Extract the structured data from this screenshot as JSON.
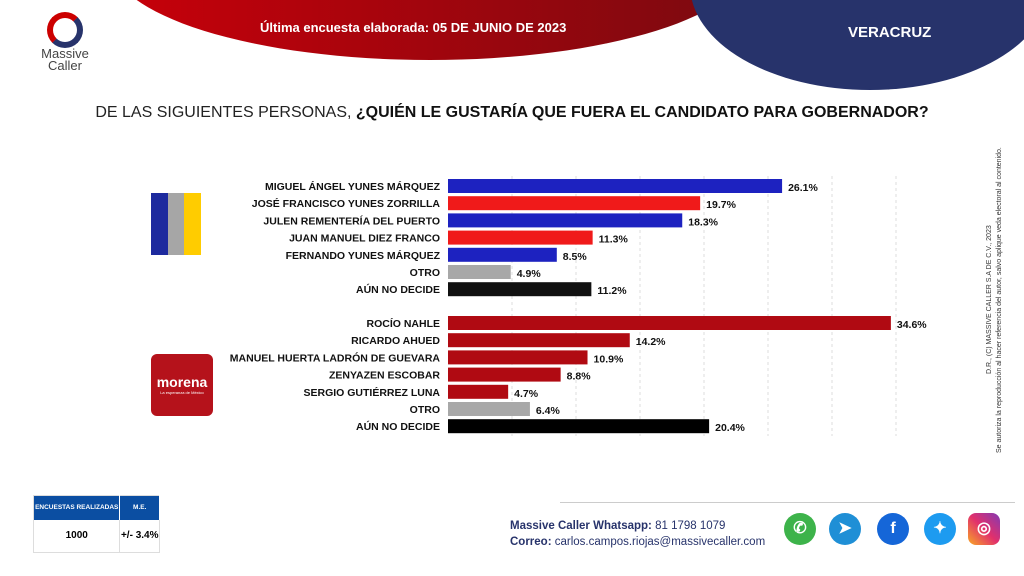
{
  "header": {
    "survey_date": "Última encuesta elaborada: 05 DE JUNIO DE 2023",
    "state": "VERACRUZ",
    "logo_text": [
      "Massive",
      "Caller"
    ]
  },
  "question": {
    "prefix": "DE LAS SIGUIENTES PERSONAS, ",
    "bold": "¿QUIÉN LE GUSTARÍA QUE FUERA EL CANDIDATO PARA GOBERNADOR?"
  },
  "chart_data": [
    {
      "type": "bar",
      "orientation": "horizontal",
      "group": "PAN-PRI-PRD",
      "grid": true,
      "categories": [
        "MIGUEL ÁNGEL YUNES MÁRQUEZ",
        "JOSÉ FRANCISCO YUNES ZORRILLA",
        "JULEN REMENTERÍA DEL PUERTO",
        "JUAN MANUEL DIEZ FRANCO",
        "FERNANDO YUNES MÁRQUEZ",
        "OTRO",
        "AÚN NO DECIDE"
      ],
      "values": [
        26.1,
        19.7,
        18.3,
        11.3,
        8.5,
        4.9,
        11.2
      ],
      "labels": [
        "26.1%",
        "19.7%",
        "18.3%",
        "11.3%",
        "8.5%",
        "4.9%",
        "11.2%"
      ],
      "colors": [
        "#1d22c0",
        "#f01a1a",
        "#1d22c0",
        "#f01a1a",
        "#1d22c0",
        "#a8a8a8",
        "#111111"
      ]
    },
    {
      "type": "bar",
      "orientation": "horizontal",
      "group": "morena",
      "grid": true,
      "categories": [
        "ROCÍO NAHLE",
        "RICARDO AHUED",
        "MANUEL HUERTA LADRÓN DE GUEVARA",
        "ZENYAZEN ESCOBAR",
        "SERGIO GUTIÉRREZ LUNA",
        "OTRO",
        "AÚN NO DECIDE"
      ],
      "values": [
        34.6,
        14.2,
        10.9,
        8.8,
        4.7,
        6.4,
        20.4
      ],
      "labels": [
        "34.6%",
        "14.2%",
        "10.9%",
        "8.8%",
        "4.7%",
        "6.4%",
        "20.4%"
      ],
      "colors": [
        "#b00a12",
        "#b00a12",
        "#b00a12",
        "#b00a12",
        "#b00a12",
        "#a8a8a8",
        "#000000"
      ]
    }
  ],
  "logos": {
    "pan_pri_prd_colors": [
      "#1d2a9e",
      "#a6a6a6",
      "#ffcc00"
    ],
    "morena_text": "morena",
    "morena_sub": "La esperanza de México"
  },
  "copyright": [
    "D.R., (C) MASSIVE CALLER S.A DE C.V., 2023",
    "Se autoriza la reproducción al hacer referencia del autor, salvo aplique veda electoral al contenido."
  ],
  "sample_table": {
    "headers": [
      "ENCUESTAS REALIZADAS",
      "M.E."
    ],
    "values": [
      "1000",
      "+/- 3.4%"
    ]
  },
  "contact": {
    "whatsapp_label": "Massive Caller Whatsapp:",
    "whatsapp": " 81 1798 1079",
    "email_label": "Correo:",
    "email": " carlos.campos.riojas@massivecaller.com"
  },
  "social": [
    "whatsapp-icon",
    "telegram-icon",
    "facebook-icon",
    "twitter-icon",
    "instagram-icon"
  ]
}
